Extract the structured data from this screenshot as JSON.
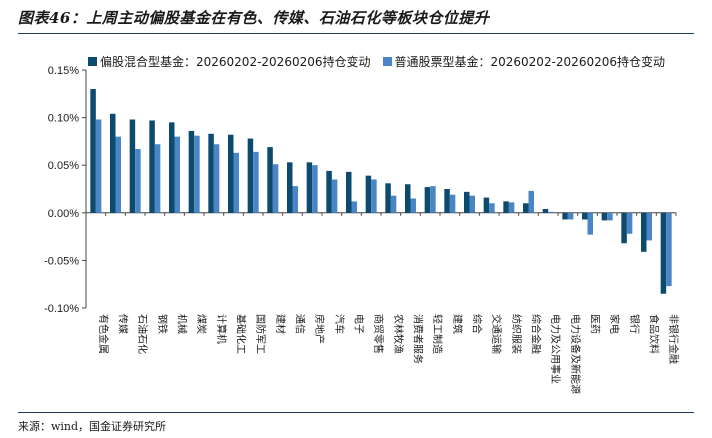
{
  "title": "图表46：上周主动偏股基金在有色、传媒、石油石化等板块仓位提升",
  "source": "来源：wind，国金证券研究所",
  "colors": {
    "series1": "#0c4a6e",
    "series2": "#4a86c5",
    "axis": "#444444"
  },
  "chart_data": {
    "type": "bar",
    "categories": [
      "有色金属",
      "传媒",
      "石油石化",
      "钢铁",
      "机械",
      "煤炭",
      "计算机",
      "基础化工",
      "国防军工",
      "建材",
      "通信",
      "房地产",
      "汽车",
      "电子",
      "商贸零售",
      "农林牧渔",
      "消费者服务",
      "轻工制造",
      "建筑",
      "综合",
      "交通运输",
      "纺织服装",
      "综合金融",
      "电力及公用事业",
      "电力设备及新能源",
      "医药",
      "家电",
      "银行",
      "食品饮料",
      "非银行金融"
    ],
    "series": [
      {
        "name": "偏股混合型基金：20260202-20260206持仓变动",
        "values": [
          0.13,
          0.104,
          0.098,
          0.097,
          0.095,
          0.086,
          0.083,
          0.082,
          0.078,
          0.069,
          0.053,
          0.053,
          0.044,
          0.043,
          0.039,
          0.031,
          0.03,
          0.027,
          0.025,
          0.022,
          0.016,
          0.012,
          0.01,
          0.004,
          -0.007,
          -0.007,
          -0.008,
          -0.032,
          -0.041,
          -0.085
        ]
      },
      {
        "name": "普通股票型基金：20260202-20260206持仓变动",
        "values": [
          0.098,
          0.08,
          0.067,
          0.072,
          0.08,
          0.081,
          0.072,
          0.063,
          0.064,
          0.051,
          0.028,
          0.05,
          0.035,
          0.012,
          0.035,
          0.018,
          0.015,
          0.028,
          0.019,
          0.018,
          0.01,
          0.011,
          0.023,
          0.001,
          -0.007,
          -0.023,
          -0.008,
          -0.022,
          -0.029,
          -0.077
        ]
      }
    ],
    "ylim": [
      -0.1,
      0.15
    ],
    "yticks": [
      "0.15%",
      "0.10%",
      "0.05%",
      "0.00%",
      "-0.05%",
      "-0.10%"
    ],
    "xlabel": "",
    "ylabel": "",
    "grid": false,
    "legend": "top"
  }
}
